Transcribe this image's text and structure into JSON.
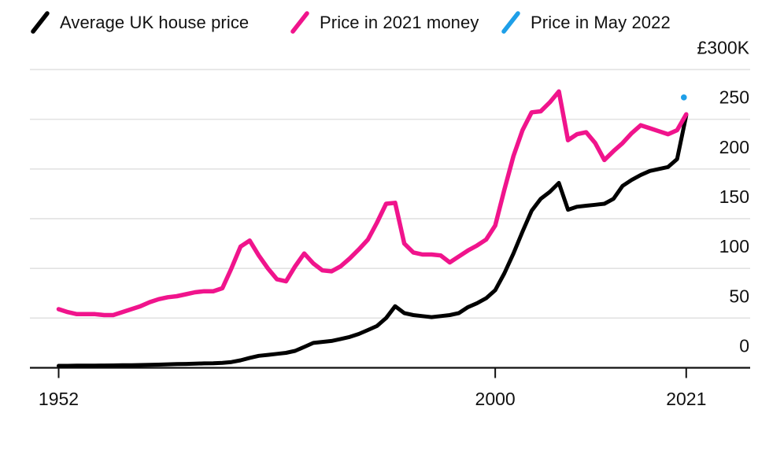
{
  "legend": {
    "items": [
      {
        "label": "Average UK house price",
        "color": "#000000"
      },
      {
        "label": "Price in 2021 money",
        "color": "#F0148C"
      },
      {
        "label": "Price in May 2022",
        "color": "#1E9FE8"
      }
    ]
  },
  "chart_data": {
    "type": "line",
    "title": "",
    "currency_note": "values in thousands of pounds (£K)",
    "grid": true,
    "legend_position": "top",
    "xlim": [
      1952,
      2021
    ],
    "ylim": [
      0,
      300
    ],
    "x": [
      1952,
      1953,
      1954,
      1955,
      1956,
      1957,
      1958,
      1959,
      1960,
      1961,
      1962,
      1963,
      1964,
      1965,
      1966,
      1967,
      1968,
      1969,
      1970,
      1971,
      1972,
      1973,
      1974,
      1975,
      1976,
      1977,
      1978,
      1979,
      1980,
      1981,
      1982,
      1983,
      1984,
      1985,
      1986,
      1987,
      1988,
      1989,
      1990,
      1991,
      1992,
      1993,
      1994,
      1995,
      1996,
      1997,
      1998,
      1999,
      2000,
      2001,
      2002,
      2003,
      2004,
      2005,
      2006,
      2007,
      2008,
      2009,
      2010,
      2011,
      2012,
      2013,
      2014,
      2015,
      2016,
      2017,
      2018,
      2019,
      2020,
      2021
    ],
    "series": [
      {
        "name": "Average UK house price",
        "color": "#000000",
        "stroke_width": 5,
        "values": [
          2.0,
          2.0,
          2.1,
          2.1,
          2.2,
          2.3,
          2.4,
          2.5,
          2.6,
          2.8,
          3.0,
          3.2,
          3.5,
          3.7,
          3.9,
          4.1,
          4.4,
          4.6,
          5.0,
          5.8,
          7.5,
          10,
          12,
          13,
          14,
          15,
          17,
          21,
          25,
          26,
          27,
          29,
          31,
          34,
          38,
          42,
          50,
          62,
          55,
          53,
          52,
          51,
          52,
          53,
          55,
          61,
          65,
          70,
          78,
          95,
          115,
          137,
          158,
          170,
          177,
          186,
          159,
          162,
          163,
          164,
          165,
          170,
          183,
          189,
          194,
          198,
          200,
          202,
          210,
          254
        ]
      },
      {
        "name": "Price in 2021 money",
        "color": "#F0148C",
        "stroke_width": 5.5,
        "values": [
          59,
          56,
          54,
          54,
          54,
          53,
          53,
          56,
          59,
          62,
          66,
          69,
          71,
          72,
          74,
          76,
          77,
          77,
          80,
          100,
          122,
          128,
          113,
          100,
          89,
          87,
          102,
          115,
          105,
          98,
          97,
          102,
          110,
          119,
          129,
          146,
          165,
          166,
          125,
          116,
          114,
          114,
          113,
          106,
          112,
          118,
          123,
          129,
          143,
          179,
          213,
          239,
          257,
          258,
          267,
          278,
          229,
          235,
          237,
          226,
          209,
          218,
          226,
          236,
          244,
          241,
          238,
          235,
          239,
          255
        ]
      }
    ],
    "point_series": {
      "name": "Price in May 2022",
      "color": "#1E9FE8",
      "year": 2021,
      "value": 272,
      "radius": 3.8
    },
    "y_ticks": [
      {
        "label": "£300K",
        "value": 300
      },
      {
        "label": "250",
        "value": 250
      },
      {
        "label": "200",
        "value": 200
      },
      {
        "label": "150",
        "value": 150
      },
      {
        "label": "100",
        "value": 100
      },
      {
        "label": "50",
        "value": 50
      },
      {
        "label": "0",
        "value": 0
      }
    ],
    "x_ticks": [
      {
        "label": "1952",
        "year": 1952
      },
      {
        "label": "2000",
        "year": 2000
      },
      {
        "label": "2021",
        "year": 2021
      }
    ]
  },
  "colors": {
    "background": "#FFFFFF",
    "grid": "#E2E2E2",
    "axis": "#111111",
    "text": "#111111"
  }
}
